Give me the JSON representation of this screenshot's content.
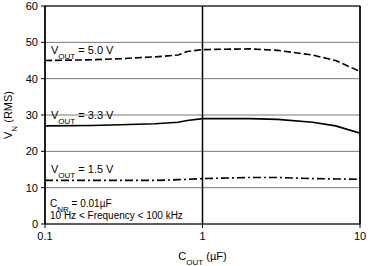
{
  "chart_data": {
    "type": "line",
    "x_label": "COUT (µF)",
    "y_label": "VN (RMS)",
    "annotations": [
      "CNR = 0.01µF",
      "10 Hz < Frequency < 100 kHz"
    ],
    "log": "x",
    "grid": true,
    "xlim": [
      0.1,
      10
    ],
    "xticks": [
      0.1,
      1,
      10
    ],
    "ylim": [
      0,
      60
    ],
    "yticks": [
      0,
      10,
      20,
      30,
      40,
      50,
      60
    ],
    "x": [
      0.1,
      0.2,
      0.3,
      0.5,
      0.7,
      0.8,
      1,
      2,
      3,
      5,
      7,
      10
    ],
    "series": [
      {
        "name": "VOUT = 5.0 V",
        "color": "#000000",
        "line_style": "dashed",
        "values": [
          45,
          45.2,
          45.5,
          46,
          46.5,
          47.5,
          48,
          48.2,
          47.8,
          46.5,
          45,
          42
        ]
      },
      {
        "name": "VOUT = 3.3 V",
        "color": "#000000",
        "line_style": "solid",
        "values": [
          27,
          27.1,
          27.3,
          27.6,
          28,
          28.5,
          29,
          29,
          28.8,
          28,
          27,
          25
        ]
      },
      {
        "name": "VOUT = 1.5 V",
        "color": "#000000",
        "line_style": "dashdot",
        "values": [
          12,
          12,
          12,
          12,
          12.2,
          12.3,
          12.5,
          12.8,
          12.8,
          12.5,
          12.4,
          12.3
        ]
      }
    ]
  }
}
